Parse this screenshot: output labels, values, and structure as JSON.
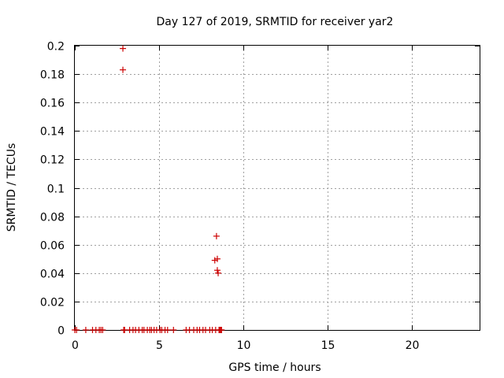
{
  "chart_data": {
    "type": "scatter",
    "title": "Day 127 of 2019, SRMTID for receiver yar2",
    "xlabel": "GPS time / hours",
    "ylabel": "SRMTID / TECUs",
    "xlim": [
      0,
      24
    ],
    "ylim": [
      0,
      0.2
    ],
    "xticks": [
      0,
      5,
      10,
      15,
      20
    ],
    "xtick_labels": [
      "0",
      "5",
      "10",
      "15",
      "20"
    ],
    "yticks": [
      0,
      0.02,
      0.04,
      0.06,
      0.08,
      0.1,
      0.12,
      0.14,
      0.16,
      0.18,
      0.2
    ],
    "ytick_labels": [
      "0",
      "0.02",
      "0.04",
      "0.06",
      "0.08",
      "0.1",
      "0.12",
      "0.14",
      "0.16",
      "0.18",
      "0.2"
    ],
    "grid": true,
    "marker": "+",
    "color": "#cc0000",
    "series": [
      {
        "name": "yar2",
        "x": [
          0.0,
          0.1,
          0.65,
          1.05,
          1.25,
          1.45,
          1.55,
          1.65,
          2.85,
          2.85,
          2.9,
          2.95,
          3.25,
          3.45,
          3.6,
          3.8,
          4.0,
          4.1,
          4.3,
          4.45,
          4.55,
          4.7,
          4.85,
          5.05,
          5.15,
          5.35,
          5.5,
          5.85,
          6.6,
          6.8,
          7.05,
          7.25,
          7.4,
          7.6,
          7.75,
          8.0,
          8.15,
          8.3,
          8.35,
          8.4,
          8.45,
          8.45,
          8.5,
          8.55,
          8.6,
          8.65,
          8.7
        ],
        "y": [
          0,
          0,
          0,
          0,
          0,
          0,
          0,
          0,
          0.198,
          0.183,
          0,
          0,
          0,
          0,
          0,
          0,
          0,
          0,
          0,
          0,
          0,
          0,
          0,
          0,
          0,
          0,
          0,
          0,
          0,
          0,
          0,
          0,
          0,
          0,
          0,
          0,
          0,
          0.049,
          0,
          0.066,
          0.05,
          0.042,
          0.04,
          0,
          0,
          0,
          0
        ]
      }
    ]
  }
}
